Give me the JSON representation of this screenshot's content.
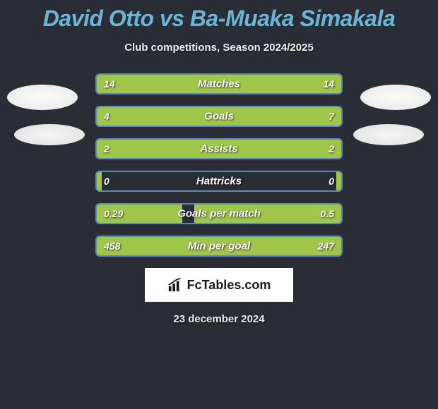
{
  "colors": {
    "background": "#2a2d35",
    "title": "#6bb5d6",
    "bar_border": "#5a8db0",
    "bar_fill": "#9fc54a",
    "text": "#ffffff",
    "subtitle": "#f0f0f0",
    "brand_bg": "#ffffff",
    "brand_text": "#1a1a1a"
  },
  "title": {
    "player1": "David Otto",
    "vs": "vs",
    "player2": "Ba-Muaka Simakala"
  },
  "subtitle": "Club competitions, Season 2024/2025",
  "rows": [
    {
      "label": "Matches",
      "left": "14",
      "right": "14",
      "left_pct": 50,
      "right_pct": 50
    },
    {
      "label": "Goals",
      "left": "4",
      "right": "7",
      "left_pct": 36,
      "right_pct": 64
    },
    {
      "label": "Assists",
      "left": "2",
      "right": "2",
      "left_pct": 50,
      "right_pct": 50
    },
    {
      "label": "Hattricks",
      "left": "0",
      "right": "0",
      "left_pct": 2,
      "right_pct": 2
    },
    {
      "label": "Goals per match",
      "left": "0.29",
      "right": "0.5",
      "left_pct": 35,
      "right_pct": 60
    },
    {
      "label": "Min per goal",
      "left": "458",
      "right": "247",
      "left_pct": 65,
      "right_pct": 35
    }
  ],
  "brand": {
    "text": "FcTables.com",
    "icon": "chart-icon"
  },
  "date": "23 december 2024"
}
